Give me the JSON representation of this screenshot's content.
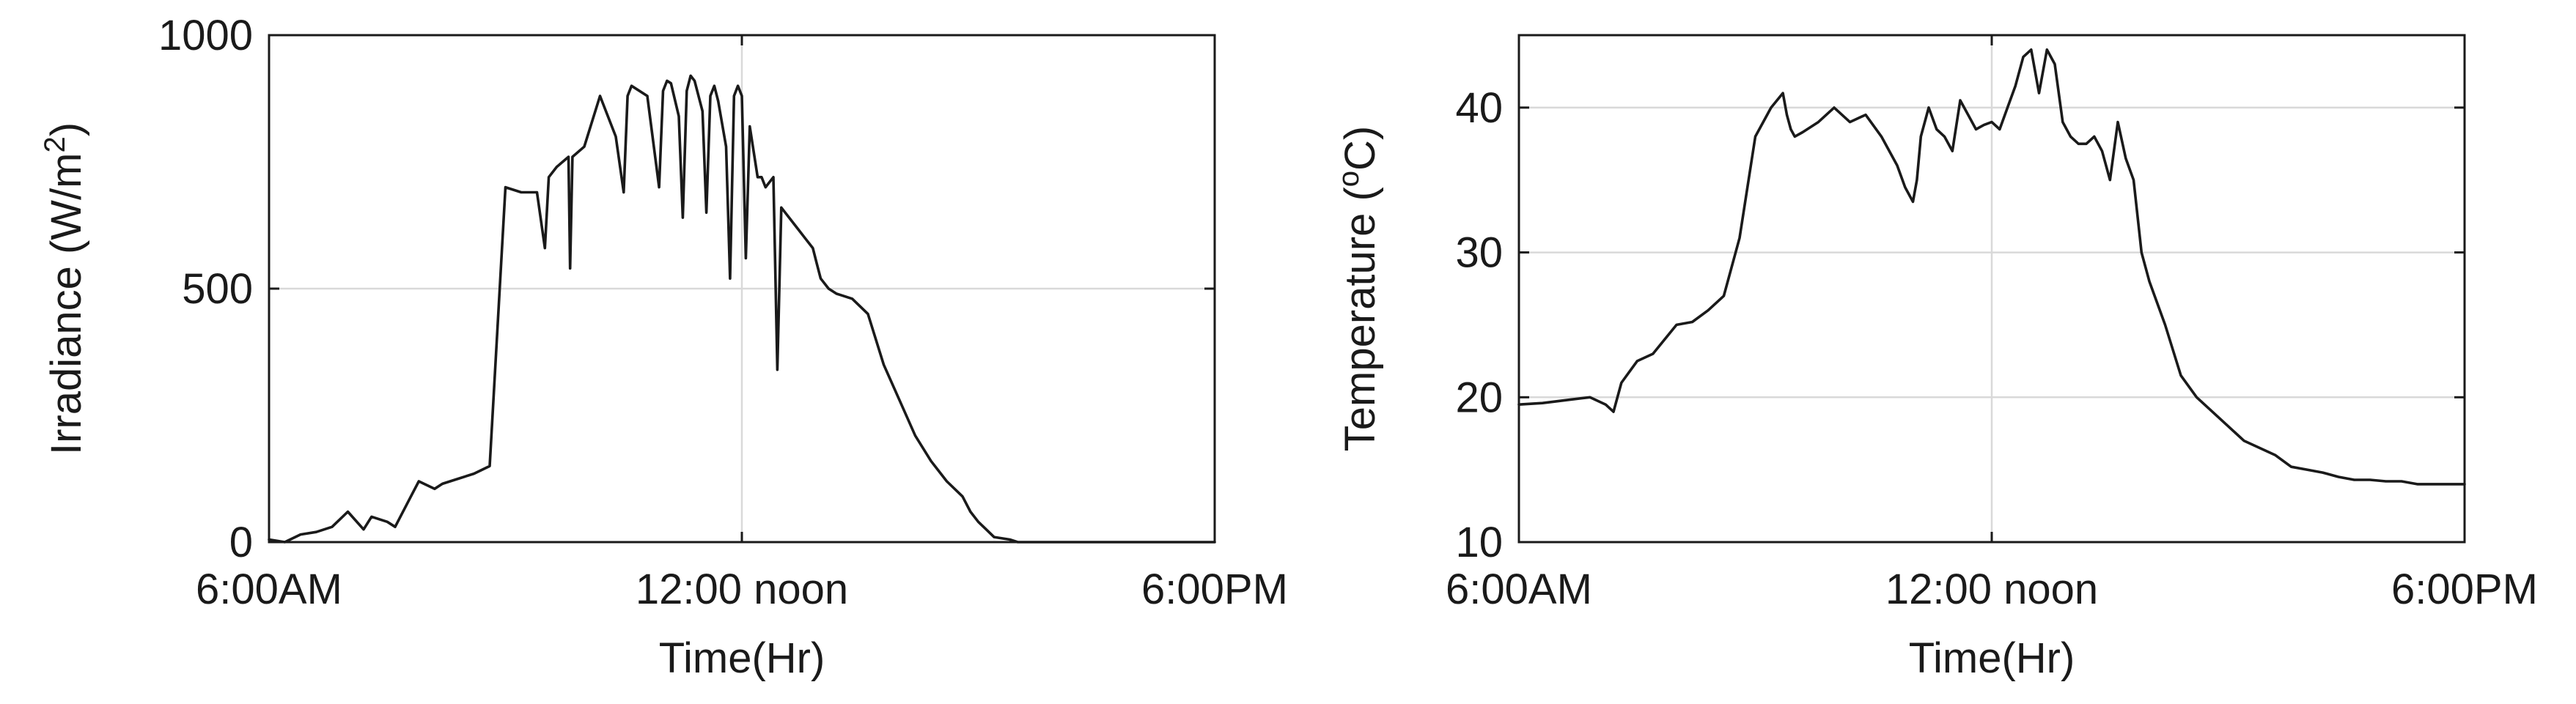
{
  "chart_data": [
    {
      "type": "line",
      "title": "",
      "xlabel": "Time(Hr)",
      "ylabel": "Irradiance (W/m",
      "ylabel_superscript": "2",
      "ylabel_suffix": ")",
      "xlim": [
        6,
        18
      ],
      "ylim": [
        0,
        1000
      ],
      "grid": true,
      "line_color": "#1a1a1a",
      "x_ticks": [
        {
          "value": 6,
          "label": "6:00AM"
        },
        {
          "value": 12,
          "label": "12:00 noon"
        },
        {
          "value": 18,
          "label": "6:00PM"
        }
      ],
      "y_ticks": [
        {
          "value": 0,
          "label": "0"
        },
        {
          "value": 500,
          "label": "500"
        },
        {
          "value": 1000,
          "label": "1000"
        }
      ],
      "series": [
        {
          "x": [
            6.0,
            6.2,
            6.4,
            6.6,
            6.8,
            7.0,
            7.2,
            7.3,
            7.5,
            7.6,
            7.8,
            7.9,
            8.1,
            8.2,
            8.4,
            8.6,
            8.8,
            9.0,
            9.2,
            9.4,
            9.5,
            9.55,
            9.65,
            9.8,
            9.82,
            9.85,
            10.0,
            10.2,
            10.4,
            10.5,
            10.55,
            10.6,
            10.8,
            10.95,
            11.0,
            11.05,
            11.1,
            11.2,
            11.25,
            11.3,
            11.35,
            11.4,
            11.5,
            11.55,
            11.6,
            11.65,
            11.7,
            11.8,
            11.85,
            11.9,
            11.95,
            12.0,
            12.05,
            12.1,
            12.2,
            12.25,
            12.3,
            12.4,
            12.45,
            12.5,
            12.55,
            12.6,
            12.7,
            12.8,
            12.9,
            12.95,
            13.0,
            13.1,
            13.2,
            13.4,
            13.6,
            13.8,
            14.0,
            14.2,
            14.4,
            14.6,
            14.8,
            14.9,
            15.0,
            15.1,
            15.2,
            15.4,
            15.5,
            15.6,
            15.8,
            16.0,
            16.2,
            16.4,
            16.6,
            16.8,
            17.0,
            17.2,
            17.5,
            18.0
          ],
          "y": [
            5,
            0,
            15,
            20,
            30,
            60,
            25,
            50,
            40,
            30,
            90,
            120,
            105,
            115,
            125,
            135,
            150,
            700,
            690,
            690,
            580,
            720,
            740,
            760,
            540,
            760,
            780,
            880,
            800,
            690,
            880,
            900,
            880,
            700,
            890,
            910,
            905,
            840,
            640,
            890,
            920,
            910,
            850,
            650,
            880,
            900,
            870,
            780,
            520,
            880,
            900,
            880,
            560,
            820,
            720,
            720,
            700,
            720,
            340,
            660,
            650,
            640,
            620,
            600,
            580,
            550,
            520,
            500,
            490,
            480,
            450,
            350,
            280,
            210,
            160,
            120,
            90,
            60,
            40,
            25,
            10,
            5,
            0,
            0,
            0,
            0,
            0,
            0,
            0,
            0,
            0,
            0,
            0,
            0
          ]
        }
      ]
    },
    {
      "type": "line",
      "title": "",
      "xlabel": "Time(Hr)",
      "ylabel": "Temperature (",
      "ylabel_superscript": "o",
      "ylabel_suffix": "C)",
      "xlim": [
        6,
        18
      ],
      "ylim": [
        10,
        45
      ],
      "grid": true,
      "line_color": "#1a1a1a",
      "x_ticks": [
        {
          "value": 6,
          "label": "6:00AM"
        },
        {
          "value": 12,
          "label": "12:00 noon"
        },
        {
          "value": 18,
          "label": "6:00PM"
        }
      ],
      "y_ticks": [
        {
          "value": 10,
          "label": "10"
        },
        {
          "value": 20,
          "label": "20"
        },
        {
          "value": 30,
          "label": "30"
        },
        {
          "value": 40,
          "label": "40"
        }
      ],
      "series": [
        {
          "x": [
            6.0,
            6.3,
            6.6,
            6.9,
            7.1,
            7.2,
            7.3,
            7.5,
            7.7,
            8.0,
            8.2,
            8.4,
            8.6,
            8.8,
            9.0,
            9.2,
            9.35,
            9.4,
            9.45,
            9.5,
            9.6,
            9.8,
            10.0,
            10.2,
            10.4,
            10.6,
            10.8,
            10.9,
            11.0,
            11.05,
            11.1,
            11.2,
            11.3,
            11.4,
            11.5,
            11.6,
            11.7,
            11.8,
            11.9,
            12.0,
            12.1,
            12.2,
            12.3,
            12.4,
            12.5,
            12.6,
            12.7,
            12.8,
            12.9,
            13.0,
            13.1,
            13.2,
            13.3,
            13.4,
            13.5,
            13.6,
            13.7,
            13.8,
            13.9,
            14.0,
            14.2,
            14.4,
            14.6,
            14.8,
            15.0,
            15.2,
            15.4,
            15.6,
            15.8,
            16.0,
            16.2,
            16.4,
            16.6,
            16.8,
            17.0,
            17.2,
            17.4,
            17.6,
            17.8,
            18.0
          ],
          "y": [
            19.5,
            19.6,
            19.8,
            20.0,
            19.5,
            19.0,
            21.0,
            22.5,
            23.0,
            25.0,
            25.2,
            26.0,
            27.0,
            31.0,
            38.0,
            40.0,
            41.0,
            39.5,
            38.5,
            38.0,
            38.3,
            39.0,
            40.0,
            39.0,
            39.5,
            38.0,
            36.0,
            34.5,
            33.5,
            35.0,
            38.0,
            40.0,
            38.5,
            38.0,
            37.0,
            40.5,
            39.5,
            38.5,
            38.8,
            39.0,
            38.5,
            40.0,
            41.5,
            43.5,
            44.0,
            41.0,
            44.0,
            43.0,
            39.0,
            38.0,
            37.5,
            37.5,
            38.0,
            37.0,
            35.0,
            39.0,
            36.5,
            35.0,
            30.0,
            28.0,
            25.0,
            21.5,
            20.0,
            19.0,
            18.0,
            17.0,
            16.5,
            16.0,
            15.2,
            15.0,
            14.8,
            14.5,
            14.3,
            14.3,
            14.2,
            14.2,
            14.0,
            14.0,
            14.0,
            14.0
          ]
        }
      ]
    }
  ]
}
